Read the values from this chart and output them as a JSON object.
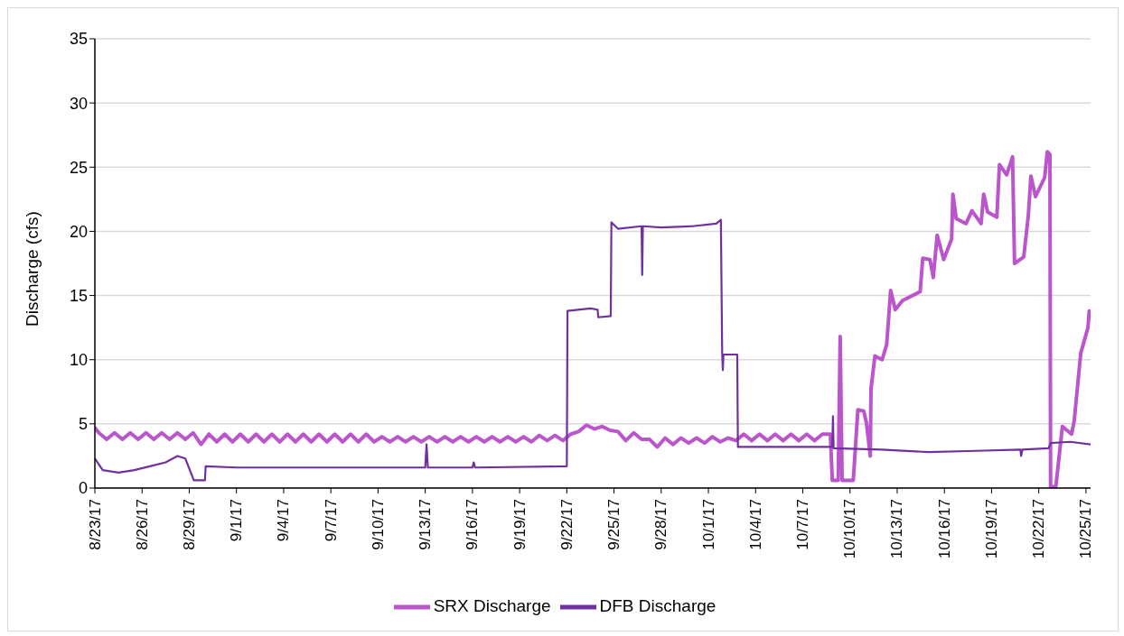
{
  "chart_data": {
    "type": "line",
    "ylabel": "Discharge (cfs)",
    "ylim": [
      0,
      35
    ],
    "yticks": [
      0,
      5,
      10,
      15,
      20,
      25,
      30,
      35
    ],
    "xlim": [
      "--08-23",
      "--10-25T07:00"
    ],
    "xticks": [
      {
        "value": "--08-23",
        "label": "8/23/17"
      },
      {
        "value": "--08-26",
        "label": "8/26/17"
      },
      {
        "value": "--08-29",
        "label": "8/29/17"
      },
      {
        "value": "--09-01",
        "label": "9/1/17"
      },
      {
        "value": "--09-04",
        "label": "9/4/17"
      },
      {
        "value": "--09-07",
        "label": "9/7/17"
      },
      {
        "value": "--09-10",
        "label": "9/10/17"
      },
      {
        "value": "--09-13",
        "label": "9/13/17"
      },
      {
        "value": "--09-16",
        "label": "9/16/17"
      },
      {
        "value": "--09-19",
        "label": "9/19/17"
      },
      {
        "value": "--09-22",
        "label": "9/22/17"
      },
      {
        "value": "--09-25",
        "label": "9/25/17"
      },
      {
        "value": "--09-28",
        "label": "9/28/17"
      },
      {
        "value": "--10-01",
        "label": "10/1/17"
      },
      {
        "value": "--10-04",
        "label": "10/4/17"
      },
      {
        "value": "--10-07",
        "label": "10/7/17"
      },
      {
        "value": "--10-10",
        "label": "10/10/17"
      },
      {
        "value": "--10-13",
        "label": "10/13/17"
      },
      {
        "value": "--10-16",
        "label": "10/16/17"
      },
      {
        "value": "--10-19",
        "label": "10/19/17"
      },
      {
        "value": "--10-22",
        "label": "10/22/17"
      },
      {
        "value": "--10-25",
        "label": "10/25/17"
      }
    ],
    "grid": "y",
    "legend": "bottom",
    "marker": "none",
    "line_style": "solid",
    "series": [
      {
        "name": "SRX Discharge",
        "color": "#bb55cc",
        "x": [
          "--08-23",
          "--08-23T06:00",
          "--08-23T18:00",
          "--08-24T06:00",
          "--08-24T18:00",
          "--08-25T06:00",
          "--08-25T18:00",
          "--08-26T06:00",
          "--08-26T18:00",
          "--08-27T06:00",
          "--08-27T18:00",
          "--08-28T06:00",
          "--08-28T18:00",
          "--08-29T06:00",
          "--08-29T18:00",
          "--08-30T06:00",
          "--08-30T18:00",
          "--08-31T06:00",
          "--08-31T18:00",
          "--09-01T06:00",
          "--09-01T18:00",
          "--09-02T06:00",
          "--09-02T18:00",
          "--09-03T06:00",
          "--09-03T18:00",
          "--09-04T06:00",
          "--09-04T18:00",
          "--09-05T06:00",
          "--09-05T18:00",
          "--09-06T06:00",
          "--09-06T18:00",
          "--09-07T06:00",
          "--09-07T18:00",
          "--09-08T06:00",
          "--09-08T18:00",
          "--09-09T06:00",
          "--09-09T18:00",
          "--09-10T06:00",
          "--09-10T18:00",
          "--09-11T06:00",
          "--09-11T18:00",
          "--09-12T06:00",
          "--09-12T18:00",
          "--09-13T06:00",
          "--09-13T18:00",
          "--09-14T06:00",
          "--09-14T18:00",
          "--09-15T06:00",
          "--09-15T18:00",
          "--09-16T06:00",
          "--09-16T18:00",
          "--09-17T06:00",
          "--09-17T18:00",
          "--09-18T06:00",
          "--09-18T18:00",
          "--09-19T06:00",
          "--09-19T18:00",
          "--09-20T06:00",
          "--09-20T18:00",
          "--09-21T06:00",
          "--09-21T18:00",
          "--09-22T06:00",
          "--09-22T18:00",
          "--09-23T06:00",
          "--09-23T18:00",
          "--09-24T06:00",
          "--09-24T18:00",
          "--09-25T06:00",
          "--09-25T18:00",
          "--09-26T06:00",
          "--09-26T18:00",
          "--09-27T06:00",
          "--09-27T18:00",
          "--09-28T06:00",
          "--09-28T18:00",
          "--09-29T06:00",
          "--09-29T18:00",
          "--09-30T06:00",
          "--09-30T18:00",
          "--10-01T06:00",
          "--10-01T18:00",
          "--10-02T06:00",
          "--10-02T18:00",
          "--10-03T06:00",
          "--10-03T18:00",
          "--10-04T06:00",
          "--10-04T18:00",
          "--10-05T06:00",
          "--10-05T18:00",
          "--10-06T06:00",
          "--10-06T18:00",
          "--10-07T06:00",
          "--10-07T18:00",
          "--10-08T06:00",
          "--10-08T18:00",
          "--10-08T21:00",
          "--10-09T06:00",
          "--10-09T09:00",
          "--10-09T12:00",
          "--10-10T05:00",
          "--10-10T12:00",
          "--10-10T21:00",
          "--10-11T01:00",
          "--10-11T07:00",
          "--10-11T08:00",
          "--10-11T14:00",
          "--10-12T01:00",
          "--10-12T08:00",
          "--10-12T14:00",
          "--10-12T21:00",
          "--10-13T08:00",
          "--10-14T11:00",
          "--10-14T15:00",
          "--10-15T02:00",
          "--10-15T07:00",
          "--10-15T13:00",
          "--10-15T23:00",
          "--10-16T11:00",
          "--10-16T13:00",
          "--10-16T18:00",
          "--10-17T09:00",
          "--10-17T18:00",
          "--10-18T08:00",
          "--10-18T12:00",
          "--10-18T18:00",
          "--10-19T08:00",
          "--10-19T12:00",
          "--10-19T23:00",
          "--10-20T08:00",
          "--10-20T11:00",
          "--10-21T01:00",
          "--10-21T08:00",
          "--10-21T12:00",
          "--10-21T19:00",
          "--10-22T09:00",
          "--10-22T13:00",
          "--10-22T17:00",
          "--10-22T18:00",
          "--10-23T02:00",
          "--10-23T12:00",
          "--10-24T02:00",
          "--10-24T06:00",
          "--10-24T16:00",
          "--10-25T03:00",
          "--10-25T05:00"
        ],
        "values": [
          4.7,
          4.3,
          3.8,
          4.3,
          3.8,
          4.3,
          3.8,
          4.3,
          3.8,
          4.3,
          3.8,
          4.3,
          3.8,
          4.3,
          3.4,
          4.2,
          3.6,
          4.2,
          3.6,
          4.2,
          3.6,
          4.2,
          3.6,
          4.2,
          3.6,
          4.2,
          3.6,
          4.2,
          3.6,
          4.2,
          3.6,
          4.2,
          3.6,
          4.2,
          3.6,
          4.2,
          3.6,
          4.0,
          3.6,
          4.0,
          3.6,
          4.0,
          3.6,
          4.0,
          3.6,
          4.0,
          3.6,
          4.0,
          3.6,
          4.0,
          3.6,
          4.0,
          3.6,
          4.0,
          3.6,
          4.0,
          3.6,
          4.1,
          3.7,
          4.1,
          3.7,
          4.2,
          4.4,
          4.9,
          4.6,
          4.8,
          4.5,
          4.4,
          3.7,
          4.3,
          3.8,
          3.8,
          3.2,
          3.9,
          3.4,
          3.9,
          3.5,
          3.9,
          3.5,
          4.0,
          3.6,
          3.9,
          3.7,
          4.2,
          3.7,
          4.2,
          3.7,
          4.2,
          3.7,
          4.2,
          3.7,
          4.2,
          3.7,
          4.2,
          4.2,
          0.6,
          0.6,
          11.8,
          0.6,
          0.6,
          6.1,
          6.0,
          5.1,
          2.5,
          7.7,
          10.3,
          10.0,
          11.2,
          15.4,
          13.9,
          14.6,
          15.3,
          17.9,
          17.8,
          16.4,
          19.7,
          17.8,
          19.4,
          22.9,
          21.0,
          20.6,
          21.6,
          20.6,
          22.9,
          21.5,
          21.1,
          25.2,
          24.4,
          25.8,
          17.5,
          18.0,
          21.2,
          24.3,
          22.7,
          24.2,
          26.2,
          26.0,
          0.1,
          0.1,
          4.8,
          4.2,
          5.2,
          10.5,
          12.5,
          13.8
        ]
      },
      {
        "name": "DFB Discharge",
        "color": "#7030a0",
        "x": [
          "--08-23",
          "--08-23T12:00",
          "--08-24T12:00",
          "--08-25T12:00",
          "--08-26T12:00",
          "--08-27T12:00",
          "--08-28T06:00",
          "--08-28T18:00",
          "--08-29T07:00",
          "--08-30T00:00",
          "--08-30T01:00",
          "--09-01",
          "--09-13T00:00",
          "--09-13T02:00",
          "--09-13T04:00",
          "--09-16T00:00",
          "--09-16T02:00",
          "--09-16T04:00",
          "--09-22T00:00",
          "--09-22T01:00",
          "--09-23T12:00",
          "--09-23T23:00",
          "--09-24T00:00",
          "--09-24T19:00",
          "--09-24T20:00",
          "--09-25T06:00",
          "--09-26T18:00",
          "--09-26T19:00",
          "--09-26T20:00",
          "--09-28",
          "--09-30",
          "--10-01T12:00",
          "--10-01T19:00",
          "--10-01T21:00",
          "--10-01T22:00",
          "--10-01T23:00",
          "--10-02T20:00",
          "--10-02T21:00",
          "--10-08T21:00",
          "--10-08T22:00",
          "--10-08T23:00",
          "--10-12",
          "--10-15",
          "--10-18",
          "--10-20T20:00",
          "--10-20T21:00",
          "--10-20T23:00",
          "--10-22T15:00",
          "--10-22T18:00",
          "--10-24",
          "--10-25T07:00"
        ],
        "values": [
          2.3,
          1.4,
          1.2,
          1.4,
          1.7,
          2.0,
          2.5,
          2.3,
          0.6,
          0.6,
          1.7,
          1.6,
          1.6,
          3.4,
          1.6,
          1.6,
          2.0,
          1.6,
          1.7,
          13.8,
          14.0,
          13.9,
          13.3,
          13.4,
          20.7,
          20.2,
          20.4,
          16.6,
          20.4,
          20.3,
          20.4,
          20.6,
          20.9,
          10.5,
          9.2,
          10.4,
          10.4,
          3.2,
          3.2,
          5.6,
          3.1,
          3.0,
          2.8,
          2.9,
          3.0,
          2.5,
          3.0,
          3.1,
          3.5,
          3.6,
          3.4
        ]
      }
    ]
  }
}
